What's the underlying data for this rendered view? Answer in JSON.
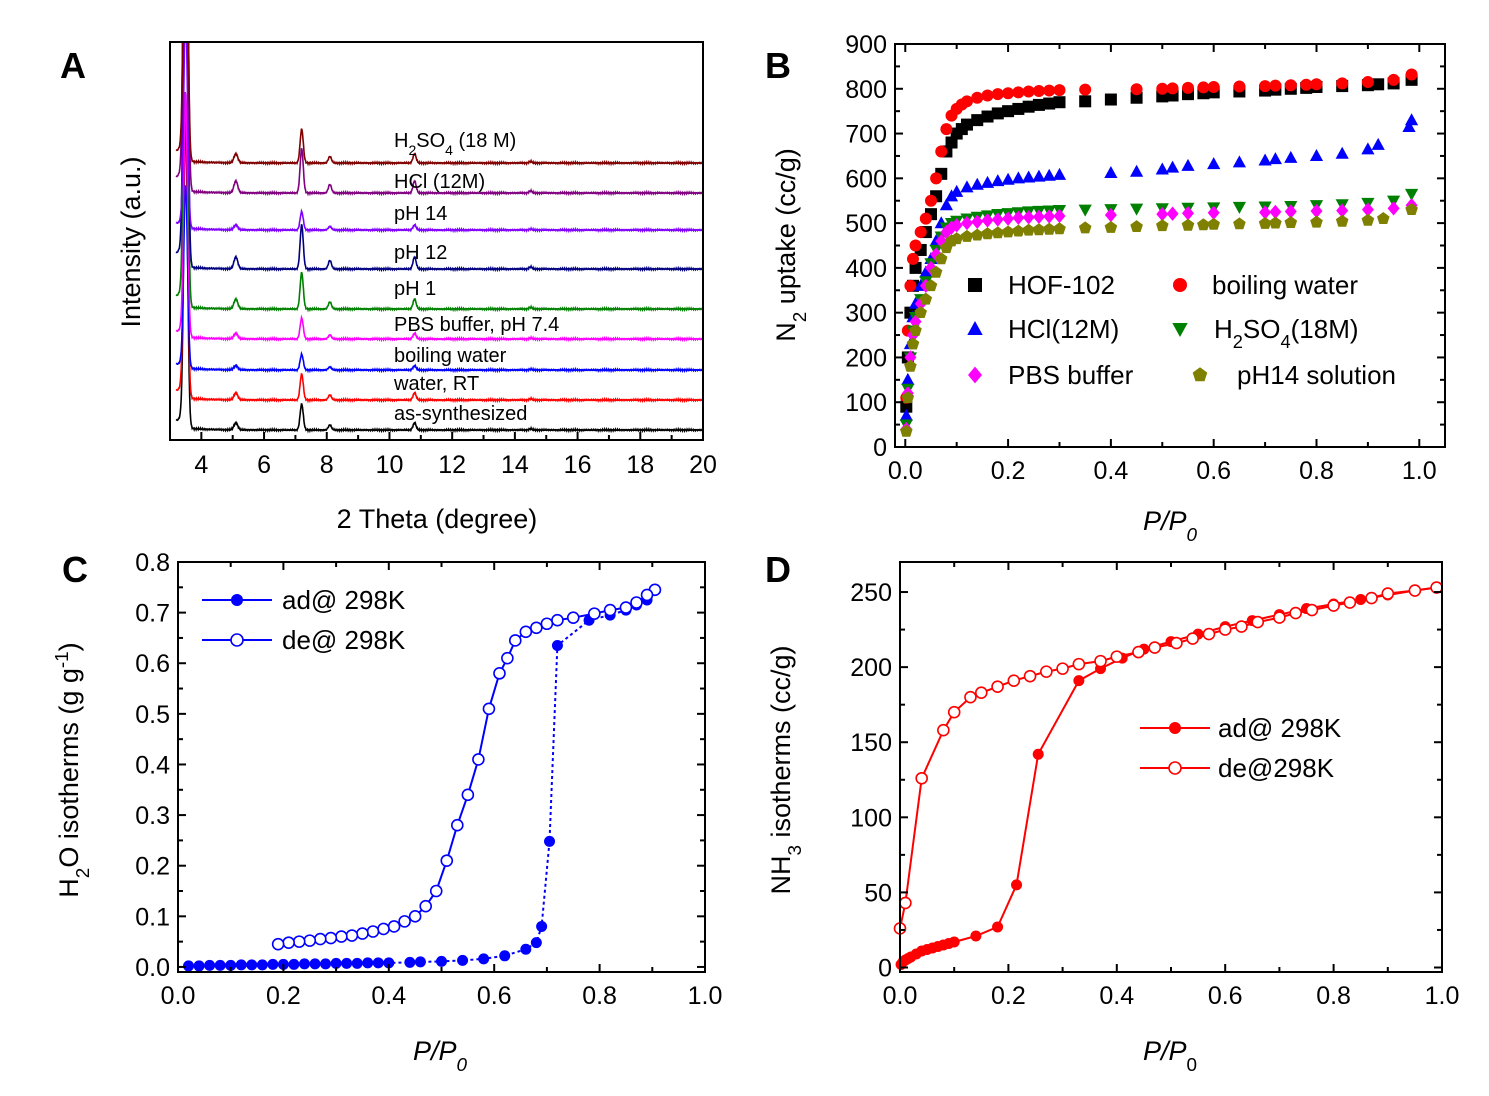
{
  "figure": {
    "panels": [
      "A",
      "B",
      "C",
      "D"
    ]
  },
  "chart_data": [
    {
      "id": "A",
      "type": "line",
      "title": "",
      "xlabel": "2 Theta (degree)",
      "ylabel": "Intensity (a.u.)",
      "xlim": [
        3,
        20
      ],
      "xticks": [
        4,
        6,
        8,
        10,
        12,
        14,
        16,
        18,
        20
      ],
      "yticks_shown": false,
      "peaks_2theta": [
        3.5,
        5.1,
        7.2,
        8.1,
        10.8,
        14.5
      ],
      "peak_rel_heights": [
        30,
        0.7,
        2.6,
        0.5,
        0.7,
        0.12
      ],
      "series": [
        {
          "name": "as-synthesized",
          "label": "as-synthesized",
          "color": "#000000",
          "scale": 1.0
        },
        {
          "name": "water, RT",
          "label": "water, RT",
          "color": "#ff0000",
          "scale": 1.0
        },
        {
          "name": "boiling water",
          "label": "boiling water",
          "color": "#0000ff",
          "scale": 0.6
        },
        {
          "name": "PBS buffer, pH 7.4",
          "label": "PBS buffer, pH 7.4",
          "color": "#ff00ff",
          "scale": 0.8
        },
        {
          "name": "pH 1",
          "label": "pH 1",
          "color": "#008000",
          "scale": 1.4
        },
        {
          "name": "pH 12",
          "label": "pH 12",
          "color": "#000080",
          "scale": 1.7
        },
        {
          "name": "pH 14",
          "label": "pH 14",
          "color": "#8000ff",
          "scale": 0.7
        },
        {
          "name": "HCl (12M)",
          "label": "HCl (12M)",
          "color": "#800080",
          "scale": 1.7
        },
        {
          "name": "H2SO4 (18 M)",
          "label_main": "H",
          "label_sub": "2",
          "label_mid": "SO",
          "label_sub2": "4",
          "label_end": " (18 M)",
          "color": "#800000",
          "scale": 1.3
        }
      ]
    },
    {
      "id": "B",
      "type": "scatter",
      "xlabel": "P/P",
      "xlabel_sub": "0",
      "ylabel_pre": "N",
      "ylabel_sub": "2",
      "ylabel_post": " uptake (cc/g)",
      "xlim": [
        -0.02,
        1.05
      ],
      "ylim": [
        0,
        900
      ],
      "xticks": [
        "0.0",
        "0.2",
        "0.4",
        "0.6",
        "0.8",
        "1.0"
      ],
      "yticks": [
        "0",
        "100",
        "200",
        "300",
        "400",
        "500",
        "600",
        "700",
        "800",
        "900"
      ],
      "series": [
        {
          "name": "HOF-102",
          "label": "HOF-102",
          "marker": "square",
          "color": "#000000",
          "x": [
            0.002,
            0.005,
            0.01,
            0.015,
            0.02,
            0.03,
            0.04,
            0.05,
            0.06,
            0.07,
            0.08,
            0.09,
            0.1,
            0.11,
            0.12,
            0.14,
            0.16,
            0.18,
            0.2,
            0.22,
            0.24,
            0.26,
            0.28,
            0.3,
            0.35,
            0.4,
            0.45,
            0.5,
            0.52,
            0.55,
            0.58,
            0.6,
            0.65,
            0.7,
            0.72,
            0.75,
            0.78,
            0.8,
            0.85,
            0.9,
            0.92,
            0.95,
            0.985
          ],
          "y": [
            90,
            200,
            300,
            360,
            400,
            440,
            480,
            520,
            560,
            610,
            660,
            680,
            700,
            710,
            720,
            730,
            738,
            745,
            750,
            755,
            760,
            764,
            767,
            770,
            772,
            776,
            780,
            783,
            785,
            788,
            790,
            792,
            794,
            796,
            798,
            800,
            802,
            804,
            806,
            808,
            810,
            812,
            820
          ]
        },
        {
          "name": "boiling water",
          "label": "boiling water",
          "marker": "circle",
          "color": "#ff0000",
          "x": [
            0.002,
            0.005,
            0.01,
            0.015,
            0.02,
            0.03,
            0.04,
            0.05,
            0.06,
            0.07,
            0.08,
            0.09,
            0.1,
            0.11,
            0.12,
            0.14,
            0.16,
            0.18,
            0.2,
            0.22,
            0.24,
            0.26,
            0.28,
            0.3,
            0.35,
            0.45,
            0.5,
            0.52,
            0.55,
            0.58,
            0.6,
            0.65,
            0.7,
            0.72,
            0.75,
            0.78,
            0.8,
            0.85,
            0.9,
            0.95,
            0.985
          ],
          "y": [
            110,
            260,
            360,
            420,
            450,
            480,
            510,
            550,
            600,
            660,
            710,
            740,
            755,
            765,
            772,
            780,
            785,
            788,
            790,
            792,
            794,
            795,
            796,
            797,
            798,
            799,
            800,
            801,
            802,
            803,
            804,
            805,
            806,
            807,
            808,
            809,
            810,
            812,
            815,
            820,
            832
          ]
        },
        {
          "name": "HCl(12M)",
          "label": "HCl(12M)",
          "marker": "triangle-up",
          "color": "#0000ff",
          "x": [
            0.002,
            0.005,
            0.01,
            0.015,
            0.02,
            0.03,
            0.04,
            0.05,
            0.06,
            0.07,
            0.08,
            0.09,
            0.1,
            0.12,
            0.14,
            0.16,
            0.18,
            0.2,
            0.22,
            0.24,
            0.26,
            0.28,
            0.3,
            0.4,
            0.45,
            0.5,
            0.52,
            0.55,
            0.6,
            0.65,
            0.7,
            0.72,
            0.75,
            0.8,
            0.85,
            0.9,
            0.92,
            0.98,
            0.985
          ],
          "y": [
            70,
            150,
            230,
            290,
            320,
            360,
            390,
            420,
            460,
            500,
            540,
            560,
            570,
            580,
            586,
            590,
            594,
            597,
            600,
            602,
            604,
            606,
            608,
            612,
            615,
            620,
            624,
            628,
            632,
            636,
            640,
            643,
            646,
            650,
            655,
            665,
            675,
            715,
            730
          ]
        },
        {
          "name": "H2SO4(18M)",
          "label_main": "H",
          "label_sub": "2",
          "label_mid": "SO",
          "label_sub2": "4",
          "label_end": "(18M)",
          "marker": "triangle-down",
          "color": "#008000",
          "x": [
            0.002,
            0.005,
            0.01,
            0.015,
            0.02,
            0.03,
            0.04,
            0.05,
            0.06,
            0.07,
            0.08,
            0.09,
            0.1,
            0.12,
            0.14,
            0.16,
            0.18,
            0.2,
            0.22,
            0.24,
            0.26,
            0.28,
            0.3,
            0.35,
            0.4,
            0.45,
            0.5,
            0.55,
            0.6,
            0.65,
            0.7,
            0.75,
            0.8,
            0.85,
            0.9,
            0.95,
            0.985
          ],
          "y": [
            50,
            130,
            200,
            260,
            290,
            330,
            370,
            410,
            440,
            470,
            490,
            500,
            505,
            510,
            514,
            517,
            520,
            522,
            524,
            526,
            527,
            528,
            529,
            530,
            531,
            532,
            533,
            534,
            535,
            536,
            537,
            538,
            540,
            542,
            545,
            550,
            565
          ]
        },
        {
          "name": "PBS buffer",
          "label": "PBS buffer",
          "marker": "diamond",
          "color": "#ff00ff",
          "x": [
            0.002,
            0.005,
            0.01,
            0.015,
            0.02,
            0.03,
            0.04,
            0.05,
            0.06,
            0.07,
            0.08,
            0.09,
            0.1,
            0.12,
            0.14,
            0.16,
            0.18,
            0.2,
            0.22,
            0.24,
            0.26,
            0.28,
            0.3,
            0.4,
            0.5,
            0.52,
            0.55,
            0.6,
            0.7,
            0.72,
            0.75,
            0.8,
            0.85,
            0.9,
            0.95,
            0.985
          ],
          "y": [
            40,
            120,
            200,
            250,
            280,
            320,
            360,
            400,
            430,
            460,
            480,
            490,
            495,
            500,
            503,
            506,
            508,
            510,
            512,
            513,
            514,
            515,
            516,
            518,
            520,
            521,
            522,
            523,
            524,
            525,
            526,
            527,
            528,
            530,
            533,
            540
          ]
        },
        {
          "name": "pH14 solution",
          "label": "pH14 solution",
          "marker": "pentagon",
          "color": "#808000",
          "x": [
            0.002,
            0.005,
            0.01,
            0.015,
            0.02,
            0.03,
            0.04,
            0.05,
            0.06,
            0.07,
            0.08,
            0.09,
            0.1,
            0.12,
            0.14,
            0.16,
            0.18,
            0.2,
            0.22,
            0.24,
            0.26,
            0.28,
            0.3,
            0.35,
            0.4,
            0.45,
            0.5,
            0.55,
            0.58,
            0.6,
            0.65,
            0.7,
            0.72,
            0.75,
            0.8,
            0.85,
            0.9,
            0.93,
            0.985
          ],
          "y": [
            35,
            110,
            180,
            230,
            260,
            300,
            330,
            360,
            390,
            420,
            445,
            460,
            465,
            470,
            473,
            476,
            478,
            480,
            482,
            484,
            485,
            486,
            487,
            489,
            490,
            492,
            494,
            495,
            496,
            497,
            498,
            499,
            500,
            501,
            502,
            504,
            506,
            510,
            530
          ]
        }
      ]
    },
    {
      "id": "C",
      "type": "line",
      "xlabel": "P/P",
      "xlabel_sub": "0",
      "ylabel_pre": "H",
      "ylabel_sub": "2",
      "ylabel_post": "O isotherms (g g",
      "ylabel_sup": "-1",
      "ylabel_end": ")",
      "xlim": [
        0,
        1.0
      ],
      "ylim": [
        -0.01,
        0.8
      ],
      "xticks": [
        "0.0",
        "0.2",
        "0.4",
        "0.6",
        "0.8",
        "1.0"
      ],
      "yticks": [
        "0.0",
        "0.1",
        "0.2",
        "0.3",
        "0.4",
        "0.5",
        "0.6",
        "0.7",
        "0.8"
      ],
      "series": [
        {
          "name": "ad@ 298K",
          "label": "ad@ 298K",
          "marker": "filled-circle",
          "color": "#0000ff",
          "dashed": true,
          "x": [
            0.02,
            0.04,
            0.06,
            0.08,
            0.1,
            0.12,
            0.14,
            0.16,
            0.18,
            0.2,
            0.22,
            0.24,
            0.26,
            0.28,
            0.3,
            0.32,
            0.34,
            0.36,
            0.38,
            0.4,
            0.44,
            0.46,
            0.5,
            0.54,
            0.58,
            0.62,
            0.66,
            0.68,
            0.69,
            0.705,
            0.72,
            0.78,
            0.82,
            0.85,
            0.87,
            0.89,
            0.905
          ],
          "y": [
            0.002,
            0.002,
            0.003,
            0.003,
            0.003,
            0.004,
            0.004,
            0.004,
            0.005,
            0.005,
            0.005,
            0.006,
            0.006,
            0.006,
            0.007,
            0.007,
            0.007,
            0.008,
            0.008,
            0.008,
            0.009,
            0.01,
            0.011,
            0.013,
            0.016,
            0.022,
            0.035,
            0.048,
            0.08,
            0.248,
            0.635,
            0.685,
            0.695,
            0.705,
            0.715,
            0.725,
            0.745
          ]
        },
        {
          "name": "de@ 298K",
          "label": "de@ 298K",
          "marker": "open-circle",
          "color": "#0000ff",
          "dashed": false,
          "x": [
            0.905,
            0.89,
            0.87,
            0.85,
            0.82,
            0.79,
            0.75,
            0.72,
            0.7,
            0.68,
            0.66,
            0.64,
            0.625,
            0.61,
            0.59,
            0.57,
            0.55,
            0.53,
            0.51,
            0.49,
            0.47,
            0.45,
            0.43,
            0.41,
            0.39,
            0.37,
            0.35,
            0.33,
            0.31,
            0.29,
            0.27,
            0.25,
            0.23,
            0.21,
            0.19
          ],
          "y": [
            0.745,
            0.735,
            0.72,
            0.71,
            0.705,
            0.698,
            0.69,
            0.685,
            0.678,
            0.67,
            0.662,
            0.645,
            0.61,
            0.58,
            0.51,
            0.41,
            0.34,
            0.28,
            0.21,
            0.15,
            0.12,
            0.1,
            0.09,
            0.08,
            0.075,
            0.07,
            0.066,
            0.062,
            0.06,
            0.057,
            0.055,
            0.052,
            0.05,
            0.048,
            0.045
          ]
        }
      ]
    },
    {
      "id": "D",
      "type": "line",
      "xlabel": "P/P",
      "xlabel_sub": "0",
      "ylabel_pre": "NH",
      "ylabel_sub": "3",
      "ylabel_post": " isotherms (cc/g)",
      "xlim": [
        0,
        1.0
      ],
      "ylim": [
        -3,
        270
      ],
      "xticks": [
        "0.0",
        "0.2",
        "0.4",
        "0.6",
        "0.8",
        "1.0"
      ],
      "yticks": [
        "0",
        "50",
        "100",
        "150",
        "200",
        "250"
      ],
      "series": [
        {
          "name": "ad@ 298K",
          "label": "ad@ 298K",
          "marker": "filled-circle",
          "color": "#ff0000",
          "x": [
            0.002,
            0.006,
            0.01,
            0.015,
            0.02,
            0.03,
            0.04,
            0.05,
            0.06,
            0.07,
            0.08,
            0.09,
            0.1,
            0.14,
            0.18,
            0.215,
            0.255,
            0.33,
            0.37,
            0.41,
            0.45,
            0.5,
            0.55,
            0.6,
            0.65,
            0.7,
            0.75,
            0.8,
            0.85,
            0.9,
            0.95,
            0.99
          ],
          "y": [
            2,
            4,
            5,
            6,
            7,
            9,
            11,
            12,
            13,
            14,
            15,
            16,
            17,
            21,
            27,
            55,
            142,
            191,
            199,
            206,
            212,
            217,
            222,
            227,
            231,
            235,
            239,
            242,
            245,
            248,
            251,
            253
          ]
        },
        {
          "name": "de@298K",
          "label": "de@298K",
          "marker": "open-circle",
          "color": "#ff0000",
          "x": [
            0.99,
            0.95,
            0.9,
            0.87,
            0.83,
            0.8,
            0.76,
            0.73,
            0.7,
            0.66,
            0.63,
            0.6,
            0.57,
            0.54,
            0.51,
            0.47,
            0.44,
            0.4,
            0.37,
            0.33,
            0.3,
            0.27,
            0.24,
            0.21,
            0.18,
            0.15,
            0.13,
            0.1,
            0.08,
            0.04,
            0.01,
            0.0
          ],
          "y": [
            253,
            251,
            249,
            246,
            243,
            241,
            238,
            236,
            233,
            230,
            227,
            225,
            222,
            219,
            216,
            213,
            210,
            207,
            204,
            202,
            199,
            197,
            194,
            191,
            187,
            183,
            180,
            170,
            158,
            126,
            43,
            26
          ]
        }
      ]
    }
  ]
}
